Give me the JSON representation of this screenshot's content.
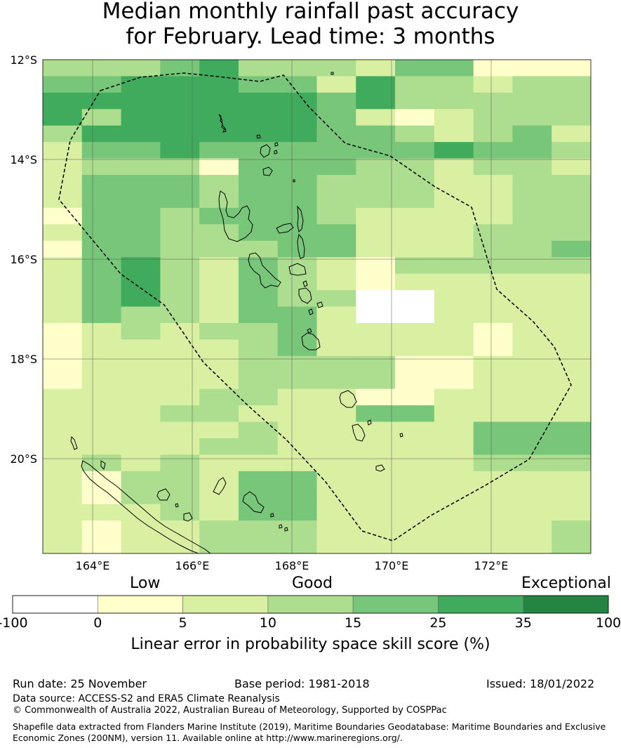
{
  "title": {
    "line1": "Median monthly rainfall past accuracy",
    "line2": "for February. Lead time: 3 months"
  },
  "map": {
    "lon_range": [
      163,
      174
    ],
    "lat_range": [
      -21.9,
      -12
    ],
    "lat_ticks": [
      {
        "value": -12,
        "label": "12°S"
      },
      {
        "value": -14,
        "label": "14°S"
      },
      {
        "value": -16,
        "label": "16°S"
      },
      {
        "value": -18,
        "label": "18°S"
      },
      {
        "value": -20,
        "label": "20°S"
      }
    ],
    "lon_ticks": [
      {
        "value": 164,
        "label": "164°E"
      },
      {
        "value": 166,
        "label": "166°E"
      },
      {
        "value": 168,
        "label": "168°E"
      },
      {
        "value": 170,
        "label": "170°E"
      },
      {
        "value": 172,
        "label": "172°E"
      }
    ],
    "class_colors": [
      "#ffffff",
      "#ffffcc",
      "#d9f0a3",
      "#addd8e",
      "#78c679",
      "#41ab5d",
      "#238443"
    ],
    "grid_classes": [
      "33345333244111",
      "44555442533233",
      "55555554533333",
      "53555554212333",
      "35555554432342",
      "24454444445443",
      "23331444332332",
      "24443443332233",
      "24443443332233",
      "14434443222233",
      "24433444222333",
      "14433344222334",
      "24532432133333",
      "24532432122222",
      "24532433002222",
      "24332442002222",
      "12323342222122",
      "12222342222122",
      "12222333311222",
      "12222333311222",
      "22223322112222",
      "22233222442222",
      "22222322222444",
      "22223322222444",
      "23232222222333",
      "21332442222222",
      "21332442222222",
      "22232442222222",
      "21223332222223",
      "21223332222223"
    ]
  },
  "colorbar": {
    "word_low": "Low",
    "word_good": "Good",
    "word_exceptional": "Exceptional",
    "bounds": [
      "-100",
      "0",
      "5",
      "10",
      "15",
      "25",
      "35",
      "100"
    ],
    "title": "Linear error in probability space skill score (%)"
  },
  "footer": {
    "run_date": "Run date: 25 November",
    "base_period": "Base period: 1981-2018",
    "issued": "Issued: 18/01/2022",
    "data_source": "Data source: ACCESS-S2 and ERA5 Climate Reanalysis",
    "copyright": "© Commonwealth of Australia 2022, Australian Bureau of Meteorology, Supported by COSPPac",
    "shapefile_line1": "Shapefile data extracted from Flanders Marine Institute (2019), Maritime Boundaries Geodatabase: Maritime Boundaries and Exclusive",
    "shapefile_line2": "Economic Zones (200NM), version 11. Available online at http://www.marineregions.org/."
  }
}
